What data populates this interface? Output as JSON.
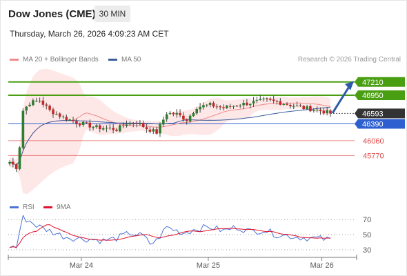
{
  "header": {
    "title": "Dow Jones (CME)",
    "timeframe": "30 MIN",
    "datetime": "Thursday, March 26, 2026 4:09:23 AM CET"
  },
  "legend": {
    "ma20_label": "MA 20 + Bollinger Bands",
    "ma50_label": "MA 50",
    "credit": "Research © 2026 Trading Central",
    "rsi_label": "RSI",
    "ma9_label": "9MA"
  },
  "colors": {
    "resistance": "#4a9e12",
    "support_blue": "#2d5fd0",
    "support_red": "#e04848",
    "last_price_bg": "#333333",
    "ma20": "#f28a8a",
    "bollinger_fill": "#fde3e3",
    "ma50": "#3a5b9c",
    "candle_up": "#2e7d32",
    "candle_down": "#c62828",
    "rsi": "#4a72d8",
    "rsi_ma9": "#e0102a",
    "arrow": "#2b5aa8"
  },
  "chart_data": [
    {
      "type": "candlestick",
      "title": "",
      "x_tick_labels": [
        "Mar 24",
        "Mar 25",
        "Mar 26"
      ],
      "levels": [
        {
          "value": 47210,
          "label": "47210",
          "kind": "resistance"
        },
        {
          "value": 46950,
          "label": "46950",
          "kind": "resistance"
        },
        {
          "value": 46593,
          "label": "46593",
          "kind": "last_price"
        },
        {
          "value": 46390,
          "label": "46390",
          "kind": "support_blue"
        },
        {
          "value": 46060,
          "label": "46060",
          "kind": "support_red"
        },
        {
          "value": 45770,
          "label": "45770",
          "kind": "support_red"
        }
      ],
      "ylim": [
        44950,
        47450
      ],
      "forecast_arrow": {
        "from": 46600,
        "to": 47210
      },
      "key_points": [
        {
          "t": 0,
          "v": 45640
        },
        {
          "t": 2,
          "v": 45540
        },
        {
          "t": 3,
          "v": 45950
        },
        {
          "t": 4,
          "v": 46650
        },
        {
          "t": 6,
          "v": 46800
        },
        {
          "t": 9,
          "v": 46850
        },
        {
          "t": 12,
          "v": 46650
        },
        {
          "t": 16,
          "v": 46520
        },
        {
          "t": 20,
          "v": 46420
        },
        {
          "t": 26,
          "v": 46320
        },
        {
          "t": 30,
          "v": 46300
        },
        {
          "t": 32,
          "v": 46280
        },
        {
          "t": 35,
          "v": 46400
        },
        {
          "t": 38,
          "v": 46420
        },
        {
          "t": 41,
          "v": 46300
        },
        {
          "t": 44,
          "v": 46220
        },
        {
          "t": 47,
          "v": 46600
        },
        {
          "t": 50,
          "v": 46580
        },
        {
          "t": 53,
          "v": 46470
        },
        {
          "t": 56,
          "v": 46720
        },
        {
          "t": 60,
          "v": 46760
        },
        {
          "t": 64,
          "v": 46700
        },
        {
          "t": 68,
          "v": 46760
        },
        {
          "t": 72,
          "v": 46800
        },
        {
          "t": 76,
          "v": 46850
        },
        {
          "t": 80,
          "v": 46820
        },
        {
          "t": 84,
          "v": 46760
        },
        {
          "t": 88,
          "v": 46700
        },
        {
          "t": 92,
          "v": 46660
        },
        {
          "t": 96,
          "v": 46600
        }
      ],
      "series": [
        {
          "name": "MA 20 + Bollinger Bands"
        },
        {
          "name": "MA 50"
        }
      ]
    },
    {
      "type": "line",
      "title": "",
      "y_ticks": [
        30,
        50,
        70
      ],
      "ylim": [
        20,
        80
      ],
      "rsi_key_points": [
        {
          "t": 0,
          "v": 35
        },
        {
          "t": 2,
          "v": 33
        },
        {
          "t": 3,
          "v": 55
        },
        {
          "t": 4,
          "v": 72
        },
        {
          "t": 6,
          "v": 68
        },
        {
          "t": 8,
          "v": 62
        },
        {
          "t": 12,
          "v": 55
        },
        {
          "t": 16,
          "v": 48
        },
        {
          "t": 20,
          "v": 45
        },
        {
          "t": 24,
          "v": 44
        },
        {
          "t": 28,
          "v": 42
        },
        {
          "t": 32,
          "v": 45
        },
        {
          "t": 36,
          "v": 52
        },
        {
          "t": 40,
          "v": 48
        },
        {
          "t": 42,
          "v": 38
        },
        {
          "t": 44,
          "v": 42
        },
        {
          "t": 47,
          "v": 60
        },
        {
          "t": 52,
          "v": 52
        },
        {
          "t": 56,
          "v": 58
        },
        {
          "t": 60,
          "v": 60
        },
        {
          "t": 64,
          "v": 55
        },
        {
          "t": 68,
          "v": 60
        },
        {
          "t": 72,
          "v": 54
        },
        {
          "t": 76,
          "v": 56
        },
        {
          "t": 80,
          "v": 50
        },
        {
          "t": 84,
          "v": 48
        },
        {
          "t": 88,
          "v": 46
        },
        {
          "t": 92,
          "v": 45
        },
        {
          "t": 96,
          "v": 43
        }
      ],
      "series": [
        {
          "name": "RSI"
        },
        {
          "name": "9MA"
        }
      ]
    }
  ]
}
